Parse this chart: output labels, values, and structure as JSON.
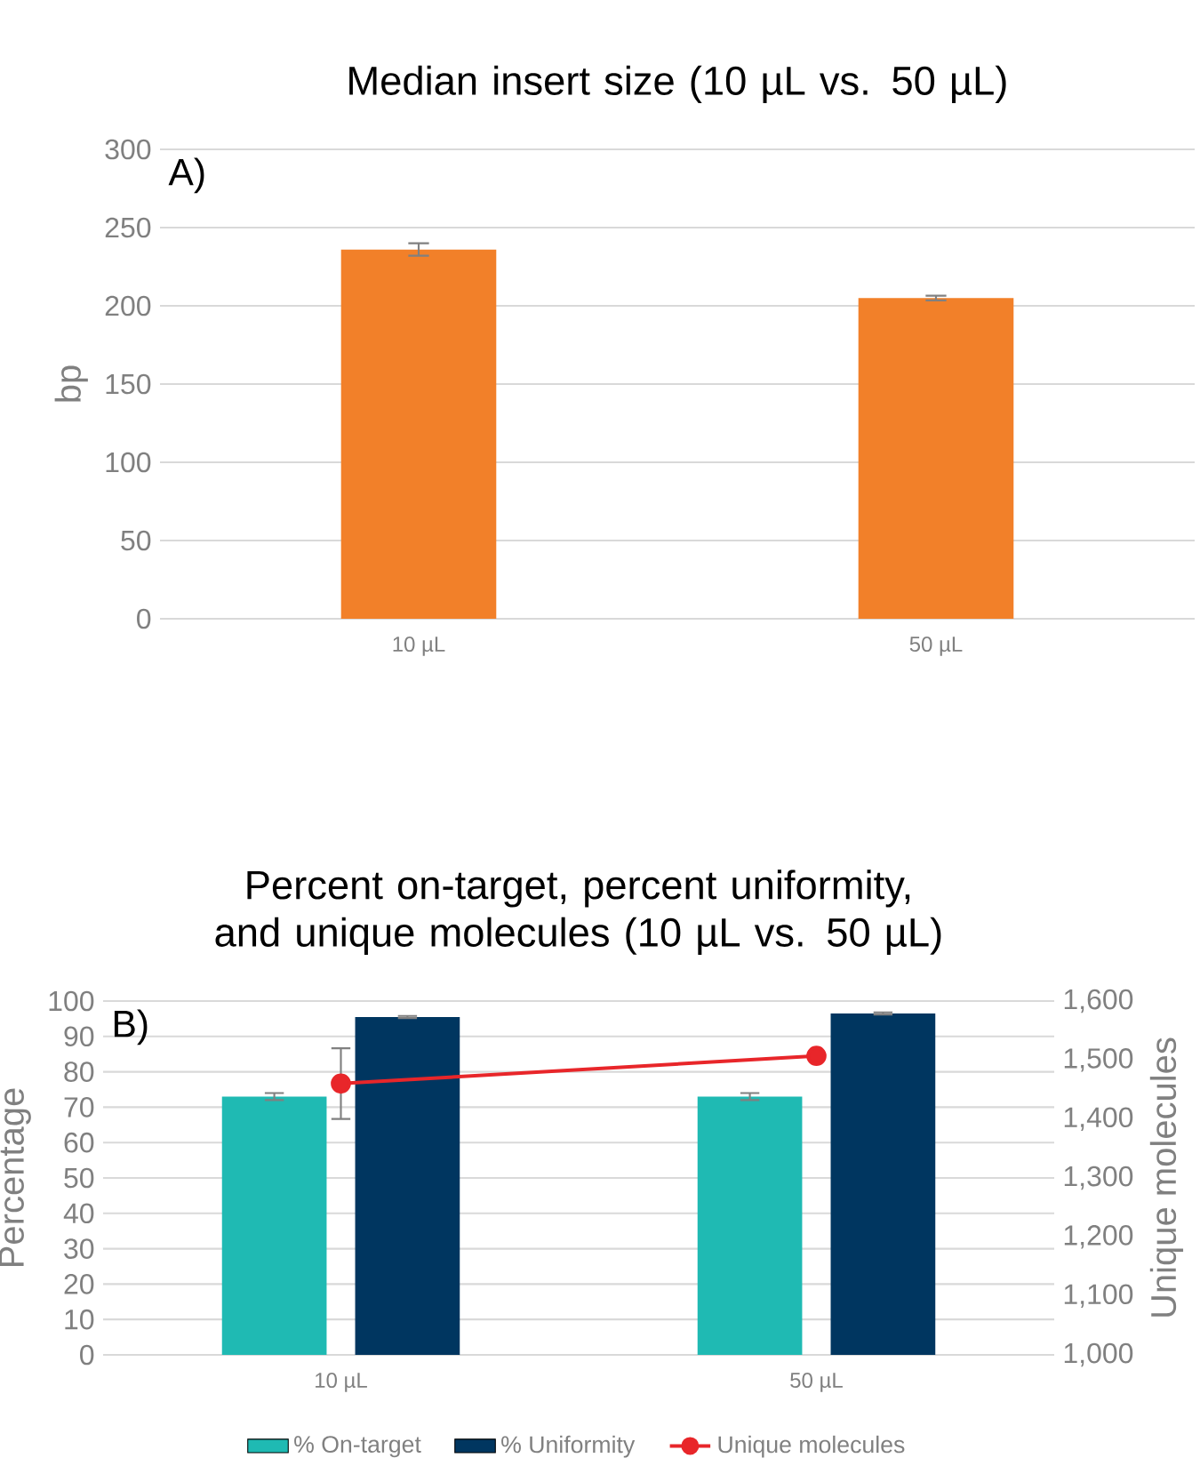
{
  "chart_data": [
    {
      "type": "bar",
      "title": "Median insert size (10 µL vs. 50 µL)",
      "annotations": [
        "A)"
      ],
      "ylabel": "bp",
      "categories": [
        "10 µL",
        "50 µL"
      ],
      "values": [
        236,
        205
      ],
      "errors": [
        4,
        1.5
      ],
      "color": "#f28029",
      "ylim": [
        0,
        300
      ],
      "yticks": [
        0,
        50,
        100,
        150,
        200,
        250,
        300
      ],
      "grid": "y"
    },
    {
      "type": "bar",
      "title": "Percent on-target, percent uniformity, and unique molecules (10 µL vs. 50 µL)",
      "annotations": [
        "B)"
      ],
      "ylabel": "Percentage",
      "y2label": "Unique molecules",
      "categories": [
        "10 µL",
        "50 µL"
      ],
      "series": [
        {
          "name": "% On-target",
          "color": "#1fbab3",
          "values": [
            73,
            73
          ],
          "errors": [
            1,
            1
          ]
        },
        {
          "name": "% Uniformity",
          "color": "#003660",
          "values": [
            95.5,
            96.5
          ],
          "errors": [
            0.3,
            0.3
          ]
        },
        {
          "name": "Unique molecules",
          "type": "line",
          "axis": "y2",
          "color": "#e8262a",
          "values": [
            1460,
            1507
          ],
          "errors": [
            60,
            null
          ],
          "marker": "circle"
        }
      ],
      "ylim": [
        0,
        100
      ],
      "yticks": [
        0,
        10,
        20,
        30,
        40,
        50,
        60,
        70,
        80,
        90,
        100
      ],
      "y2lim": [
        1000,
        1600
      ],
      "y2ticks": [
        {
          "value": 1000,
          "label": "1,000"
        },
        {
          "value": 1100,
          "label": "1,100"
        },
        {
          "value": 1200,
          "label": "1,200"
        },
        {
          "value": 1300,
          "label": "1,300"
        },
        {
          "value": 1400,
          "label": "1,400"
        },
        {
          "value": 1500,
          "label": "1,500"
        },
        {
          "value": 1600,
          "label": "1,600"
        }
      ],
      "grid": "y",
      "legend": "bottom"
    }
  ]
}
